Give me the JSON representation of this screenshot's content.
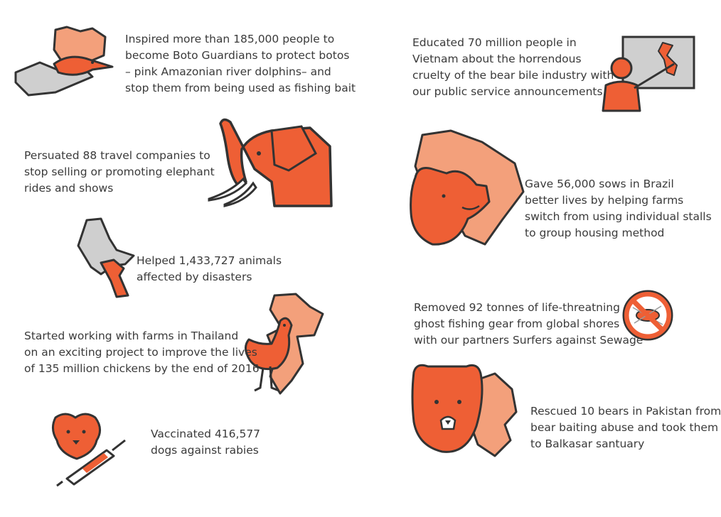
{
  "colors": {
    "orange": "#ee5f35",
    "light_orange": "#f3a07b",
    "dark": "#333333",
    "grey": "#c9c9c9"
  },
  "items": [
    {
      "icon": "hand-holding-dolphin-icon",
      "lines": [
        "Inspired more than 185,000 people to",
        "become Boto Guardians to protect botos",
        "– pink Amazonian river dolphins– and",
        "stop them from being used as fishing bait"
      ]
    },
    {
      "icon": "elephant-icon",
      "lines": [
        "Persuated 88 travel companies to",
        "stop selling or promoting elephant",
        "rides and shows"
      ]
    },
    {
      "icon": "hand-holding-animal-icon",
      "lines": [
        "Helped 1,433,727 animals",
        "affected by disasters"
      ]
    },
    {
      "icon": "chicken-thailand-icon",
      "lines": [
        "Started working with farms in Thailand",
        "on an exciting project to improve the lives",
        "of 135 million chickens by the end of 2016"
      ]
    },
    {
      "icon": "dog-vaccine-icon",
      "lines": [
        "Vaccinated 416,577",
        "dogs against rabies"
      ]
    },
    {
      "icon": "teacher-vietnam-map-icon",
      "lines": [
        "Educated 70 million people in",
        "Vietnam about the horrendous",
        "cruelty of the bear bile industry with",
        "our public service announcements"
      ]
    },
    {
      "icon": "pig-brazil-icon",
      "lines": [
        "Gave 56,000 sows in Brazil",
        "better lives by helping farms",
        "switch from using individual stalls",
        "to group housing method"
      ]
    },
    {
      "icon": "no-fishing-gear-icon",
      "lines": [
        "Removed 92 tonnes of life-threatning",
        "ghost fishing gear from global shores",
        "with our partners Surfers against Sewage"
      ]
    },
    {
      "icon": "bear-pakistan-icon",
      "lines": [
        "Rescued 10 bears in Pakistan from",
        "bear baiting abuse and took them",
        "to Balkasar santuary"
      ]
    }
  ]
}
